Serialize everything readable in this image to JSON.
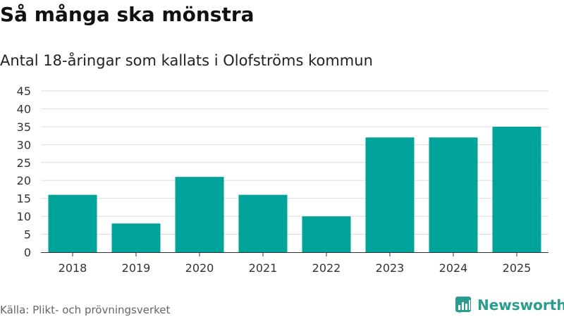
{
  "title": "Så många ska mönstra",
  "subtitle": "Antal 18-åringar som kallats i Olofströms kommun",
  "source": "Källa: Plikt- och prövningsverket",
  "brand": "Newsworthy",
  "colors": {
    "bar": "#00a39a",
    "grid": "#dddddd",
    "axis": "#333333",
    "text": "#333333",
    "brand": "#2a9d8f"
  },
  "chart_data": {
    "type": "bar",
    "categories": [
      "2018",
      "2019",
      "2020",
      "2021",
      "2022",
      "2023",
      "2024",
      "2025"
    ],
    "values": [
      16,
      8,
      21,
      16,
      10,
      32,
      32,
      35
    ],
    "yticks": [
      "0",
      "5",
      "10",
      "15",
      "20",
      "25",
      "30",
      "35",
      "40",
      "45"
    ],
    "ylim": [
      0,
      45
    ],
    "title": "Så många ska mönstra",
    "subtitle": "Antal 18-åringar som kallats i Olofströms kommun",
    "xlabel": "",
    "ylabel": ""
  }
}
